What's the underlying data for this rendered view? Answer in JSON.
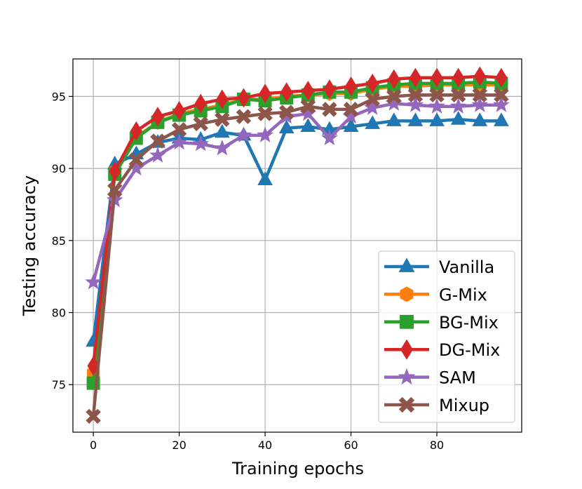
{
  "chart_data": {
    "type": "line",
    "xlabel": "Training epochs",
    "ylabel": "Testing accuracy",
    "xlim": [
      -4.75,
      99.75
    ],
    "ylim": [
      71.7,
      97.6
    ],
    "xticks": [
      0,
      20,
      40,
      60,
      80
    ],
    "yticks": [
      75,
      80,
      85,
      90,
      95
    ],
    "grid": true,
    "legend_position": "lower-right",
    "x": [
      0,
      5,
      10,
      15,
      20,
      25,
      30,
      35,
      40,
      45,
      50,
      55,
      60,
      65,
      70,
      75,
      80,
      85,
      90,
      95
    ],
    "series": [
      {
        "name": "Vanilla",
        "color": "#1f77b4",
        "marker": "triangle",
        "values": [
          78.0,
          90.3,
          91.0,
          91.8,
          92.1,
          92.0,
          92.5,
          92.3,
          89.2,
          92.8,
          92.9,
          92.7,
          92.9,
          93.1,
          93.3,
          93.3,
          93.3,
          93.4,
          93.3,
          93.3
        ]
      },
      {
        "name": "G-Mix",
        "color": "#ff7f0e",
        "marker": "hexagon",
        "values": [
          75.8,
          89.8,
          92.2,
          93.2,
          93.8,
          94.1,
          94.4,
          94.8,
          94.8,
          95.0,
          95.1,
          95.2,
          95.2,
          95.5,
          95.7,
          95.7,
          95.8,
          95.8,
          95.8,
          95.8
        ]
      },
      {
        "name": "BG-Mix",
        "color": "#2ca02c",
        "marker": "square",
        "values": [
          75.1,
          89.6,
          92.1,
          93.2,
          93.7,
          94.0,
          94.3,
          94.8,
          94.7,
          94.9,
          95.1,
          95.3,
          95.3,
          95.6,
          95.8,
          95.9,
          95.9,
          95.9,
          96.0,
          95.9
        ]
      },
      {
        "name": "DG-Mix",
        "color": "#d62728",
        "marker": "diamond",
        "values": [
          76.3,
          89.8,
          92.6,
          93.6,
          94.0,
          94.5,
          94.8,
          94.9,
          95.2,
          95.3,
          95.4,
          95.5,
          95.7,
          95.9,
          96.2,
          96.3,
          96.3,
          96.3,
          96.4,
          96.3
        ]
      },
      {
        "name": "SAM",
        "color": "#9467bd",
        "marker": "star",
        "values": [
          82.1,
          87.8,
          90.0,
          90.9,
          91.8,
          91.7,
          91.4,
          92.3,
          92.3,
          93.6,
          93.8,
          92.1,
          93.6,
          94.2,
          94.5,
          94.4,
          94.3,
          94.3,
          94.4,
          94.4
        ]
      },
      {
        "name": "Mixup",
        "color": "#8c564b",
        "marker": "x",
        "values": [
          72.8,
          88.5,
          90.6,
          91.9,
          92.7,
          93.1,
          93.4,
          93.6,
          93.8,
          93.9,
          94.3,
          94.1,
          94.1,
          94.8,
          95.0,
          95.1,
          95.1,
          95.1,
          95.1,
          95.1
        ]
      }
    ]
  }
}
